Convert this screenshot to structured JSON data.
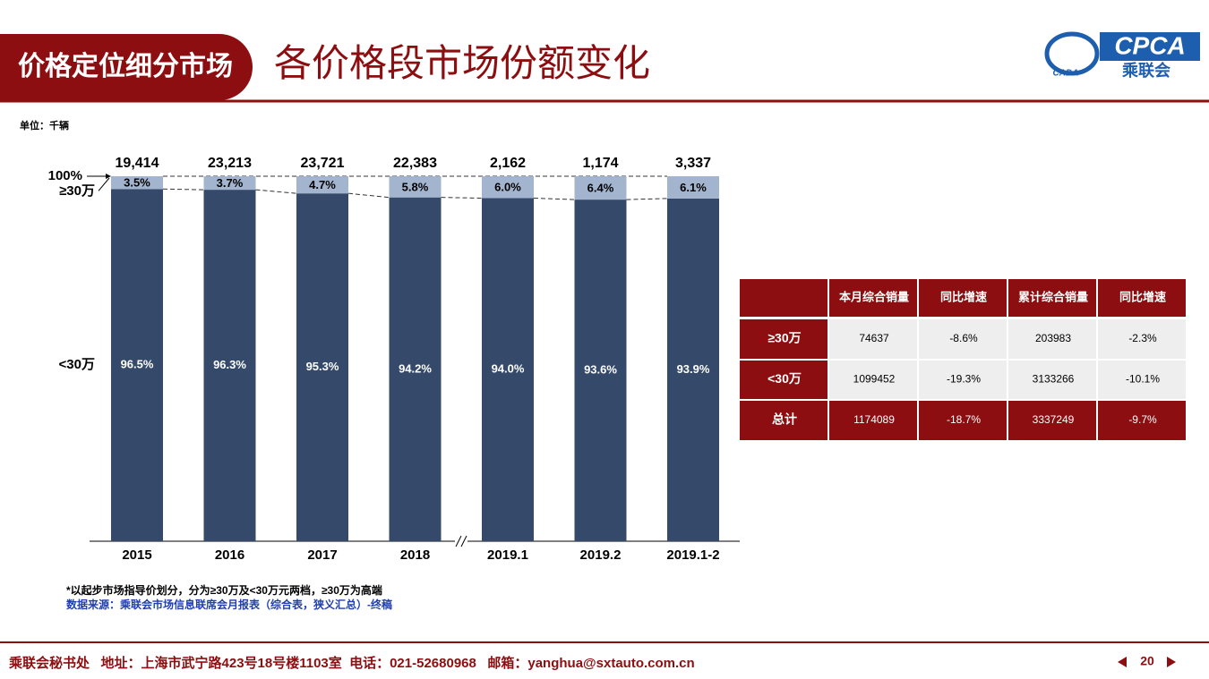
{
  "header": {
    "section": "价格定位细分市场",
    "title": "各价格段市场份额变化",
    "logo_text": "CPCA",
    "logo_sub": "乘联会",
    "logo_small": "CADA"
  },
  "chart_data": {
    "type": "bar",
    "stacked": true,
    "unit": "单位：千辆",
    "categories": [
      "2015",
      "2016",
      "2017",
      "2018",
      "2019.1",
      "2019.2",
      "2019.1-2"
    ],
    "totals": {
      "values": [
        19414,
        23213,
        23721,
        22383,
        2162,
        1174,
        3337
      ],
      "value_labels": [
        "19,414",
        "23,213",
        "23,721",
        "22,383",
        "2,162",
        "1,174",
        "3,337"
      ]
    },
    "series": [
      {
        "name": "<30万",
        "color": "#354a6a",
        "values": [
          96.5,
          96.3,
          95.3,
          94.2,
          94.0,
          93.6,
          93.9
        ],
        "value_labels": [
          "96.5%",
          "96.3%",
          "95.3%",
          "94.2%",
          "94.0%",
          "93.6%",
          "93.9%"
        ]
      },
      {
        "name": "≥30万",
        "color": "#a3b4cf",
        "values": [
          3.5,
          3.7,
          4.7,
          5.8,
          6.0,
          6.4,
          6.1
        ],
        "value_labels": [
          "3.5%",
          "3.7%",
          "4.7%",
          "5.8%",
          "6.0%",
          "6.4%",
          "6.1%"
        ]
      }
    ],
    "ylim": [
      0,
      100
    ],
    "yticks": [
      {
        "value": 100,
        "label": "100%"
      }
    ]
  },
  "notes": [
    "*以起步市场指导价划分，分为≥30万及<30万元两档，≥30万为高端",
    "数据来源：乘联会市场信息联席会月报表（综合表，狭义汇总）-终稿"
  ],
  "table": {
    "header": [
      "本月综合销量",
      "同比增速",
      "累计综合销量",
      "同比增速"
    ],
    "rows": [
      [
        "≥30万",
        74637,
        "-8.6%",
        203983,
        "-2.3%"
      ],
      [
        "<30万",
        1099452,
        "-19.3%",
        3133266,
        "-10.1%"
      ],
      [
        "总计",
        1174089,
        "-18.7%",
        3337249,
        "-9.7%"
      ]
    ]
  },
  "footer": {
    "text": "乘联会秘书处   地址：上海市武宁路423号18号楼1103室  电话：021-52680968   邮箱：yanghua@sxtauto.com.cn",
    "page": "20"
  }
}
